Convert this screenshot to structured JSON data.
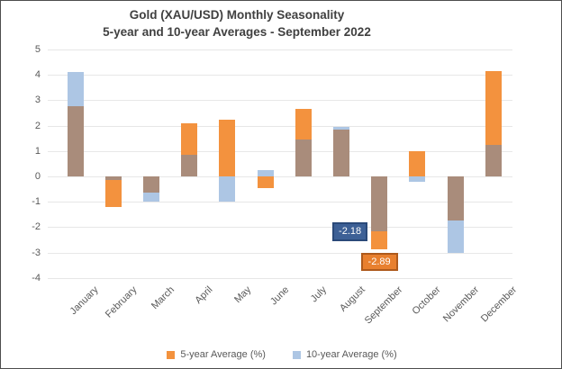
{
  "title": {
    "line1": "Gold (XAU/USD) Monthly Seasonality",
    "line2": "5-year and 10-year Averages - September 2022"
  },
  "chart_data": {
    "type": "bar",
    "title": "Gold (XAU/USD) Monthly Seasonality — 5-year and 10-year Averages - September 2022",
    "categories": [
      "January",
      "February",
      "March",
      "April",
      "May",
      "June",
      "July",
      "August",
      "September",
      "October",
      "November",
      "December"
    ],
    "series": [
      {
        "name": "5-year Average (%)",
        "color": "#f3923e",
        "values": [
          2.75,
          -1.2,
          -0.65,
          2.1,
          2.25,
          -0.45,
          2.65,
          1.85,
          -2.89,
          1.0,
          -1.75,
          4.15
        ]
      },
      {
        "name": "10-year Average (%)",
        "color": "#adc6e4",
        "values": [
          4.1,
          -0.15,
          -1.0,
          0.85,
          -1.0,
          0.25,
          1.45,
          1.95,
          -2.18,
          -0.2,
          -3.0,
          1.25
        ]
      }
    ],
    "overlap_color": "#a98c7b",
    "ylim": [
      -4,
      5
    ],
    "ytick_step": 1,
    "yticks": [
      5,
      4,
      3,
      2,
      1,
      0,
      -1,
      -2,
      -3,
      -4
    ],
    "grid": true,
    "legend_position": "bottom",
    "annotations": [
      {
        "series": "10-year Average (%)",
        "category": "September",
        "value": -2.18,
        "text": "-2.18",
        "fill": "#3d6096",
        "border": "#2a4979"
      },
      {
        "series": "5-year Average (%)",
        "category": "September",
        "value": -2.89,
        "text": "-2.89",
        "fill": "#e8802f",
        "border": "#ae5a1c"
      }
    ],
    "colors": {
      "grid": "#e7e7e7",
      "axis_text": "#595959",
      "title_text": "#404040"
    }
  },
  "legend": {
    "items": [
      {
        "label": "5-year Average (%)"
      },
      {
        "label": "10-year Average (%)"
      }
    ]
  }
}
